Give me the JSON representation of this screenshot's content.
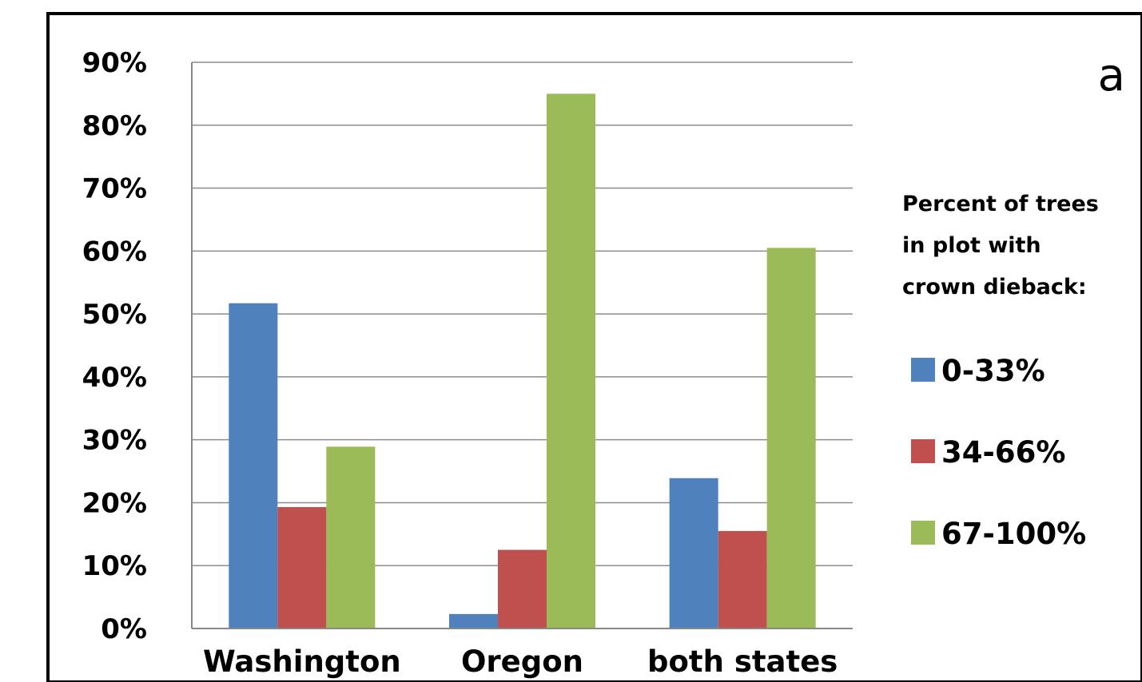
{
  "panel_label": "a",
  "chart_data": {
    "type": "bar",
    "categories": [
      "Washington",
      "Oregon",
      "both states"
    ],
    "series": [
      {
        "name": "0-33%",
        "color": "#4f81bd",
        "values": [
          51.7,
          2.3,
          23.9
        ]
      },
      {
        "name": "34-66%",
        "color": "#c0504d",
        "values": [
          19.3,
          12.5,
          15.5
        ]
      },
      {
        "name": "67-100%",
        "color": "#9bbb59",
        "values": [
          28.9,
          85.0,
          60.5
        ]
      }
    ],
    "y_unit": "%",
    "ylim": [
      0,
      90
    ],
    "yticks": [
      "0%",
      "10%",
      "20%",
      "30%",
      "40%",
      "50%",
      "60%",
      "70%",
      "80%",
      "90%"
    ],
    "grid": true,
    "legend": {
      "title_lines": [
        "Percent of trees",
        "in plot with",
        "crown dieback:"
      ],
      "placement": "right"
    }
  }
}
